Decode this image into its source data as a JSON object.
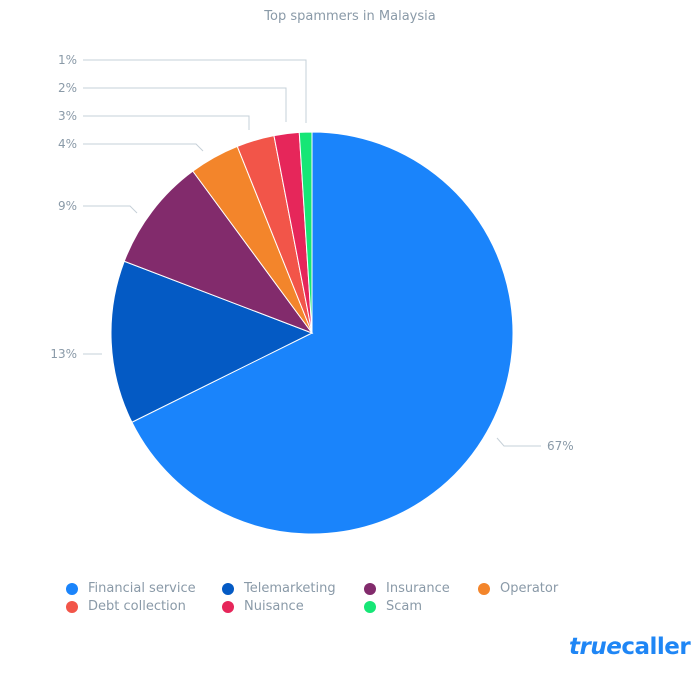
{
  "chart_data": {
    "type": "pie",
    "title": "Top spammers in Malaysia",
    "categories": [
      "Financial service",
      "Telemarketing",
      "Insurance",
      "Operator",
      "Debt collection",
      "Nuisance",
      "Scam"
    ],
    "values": [
      67,
      13,
      9,
      4,
      3,
      2,
      1
    ],
    "labels": [
      "67%",
      "13%",
      "9%",
      "4%",
      "3%",
      "2%",
      "1%"
    ],
    "colors": [
      "#1a84fb",
      "#045ac4",
      "#822b6c",
      "#f3852b",
      "#f25549",
      "#e6265a",
      "#16e676"
    ],
    "start_angle": "12 o'clock",
    "direction": "clockwise",
    "legend_position": "bottom"
  },
  "title": "Top spammers in Malaysia",
  "legend": [
    {
      "label": "Financial service",
      "color": "#1a84fb"
    },
    {
      "label": "Telemarketing",
      "color": "#045ac4"
    },
    {
      "label": "Insurance",
      "color": "#822b6c"
    },
    {
      "label": "Operator",
      "color": "#f3852b"
    },
    {
      "label": "Debt collection",
      "color": "#f25549"
    },
    {
      "label": "Nuisance",
      "color": "#e6265a"
    },
    {
      "label": "Scam",
      "color": "#16e676"
    }
  ],
  "brand": {
    "part1": "true",
    "part2": "caller"
  }
}
